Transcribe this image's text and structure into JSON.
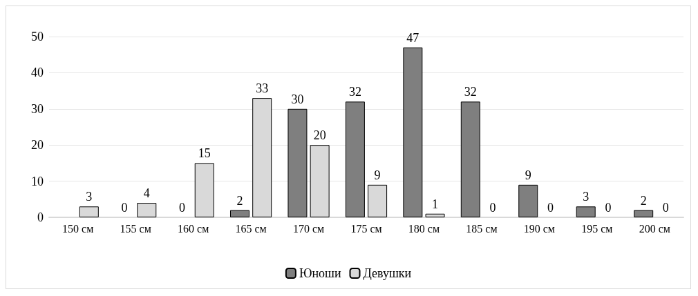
{
  "chart_data": {
    "type": "bar",
    "categories": [
      "150 см",
      "155 см",
      "160 см",
      "165 см",
      "170 см",
      "175 см",
      "180 см",
      "185 см",
      "190 см",
      "195 см",
      "200 см"
    ],
    "series": [
      {
        "name": "Юноши",
        "color": "#7f7f7f",
        "values": [
          null,
          0,
          0,
          2,
          30,
          32,
          47,
          32,
          9,
          3,
          2
        ]
      },
      {
        "name": "Девушки",
        "color": "#d9d9d9",
        "values": [
          3,
          4,
          15,
          33,
          20,
          9,
          1,
          0,
          0,
          0,
          0
        ]
      }
    ],
    "ylim": [
      0,
      50
    ],
    "yticks": [
      0,
      10,
      20,
      30,
      40,
      50
    ],
    "grid": "y",
    "legend": "bottom",
    "data_labels": true
  }
}
